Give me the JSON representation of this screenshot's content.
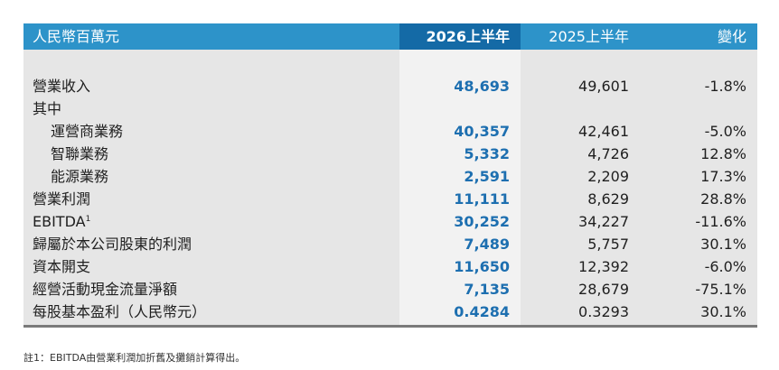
{
  "header": {
    "unit_label": "人民幣百萬元",
    "col_current": "2026上半年",
    "col_prior": "2025上半年",
    "col_change": "變化"
  },
  "rows": [
    {
      "label": "營業收入",
      "current": "48,693",
      "prior": "49,601",
      "change": "-1.8%"
    },
    {
      "label": "其中",
      "current": "",
      "prior": "",
      "change": ""
    },
    {
      "label": "運營商業務",
      "current": "40,357",
      "prior": "42,461",
      "change": "-5.0%"
    },
    {
      "label": "智聯業務",
      "current": "5,332",
      "prior": "4,726",
      "change": "12.8%"
    },
    {
      "label": "能源業務",
      "current": "2,591",
      "prior": "2,209",
      "change": "17.3%"
    },
    {
      "label": "營業利潤",
      "current": "11,111",
      "prior": "8,629",
      "change": "28.8%"
    },
    {
      "label": "EBITDA",
      "label_sup": "1",
      "current": "30,252",
      "prior": "34,227",
      "change": "-11.6%"
    },
    {
      "label": "歸屬於本公司股東的利潤",
      "current": "7,489",
      "prior": "5,757",
      "change": "30.1%"
    },
    {
      "label": "資本開支",
      "current": "11,650",
      "prior": "12,392",
      "change": "-6.0%"
    },
    {
      "label": "經營活動現金流量淨額",
      "current": "7,135",
      "prior": "28,679",
      "change": "-75.1%"
    },
    {
      "label": "每股基本盈利（人民幣元）",
      "current": "0.4284",
      "prior": "0.3293",
      "change": "30.1%"
    }
  ],
  "footnote": "註1：EBITDA由營業利潤加折舊及攤銷計算得出。",
  "colors": {
    "header_blue": "#2d93c9",
    "header_current_blue": "#146aa6",
    "body_gray": "#e6e6e6",
    "body_current": "#f2f2f2",
    "current_value_blue": "#1d6fb0"
  }
}
